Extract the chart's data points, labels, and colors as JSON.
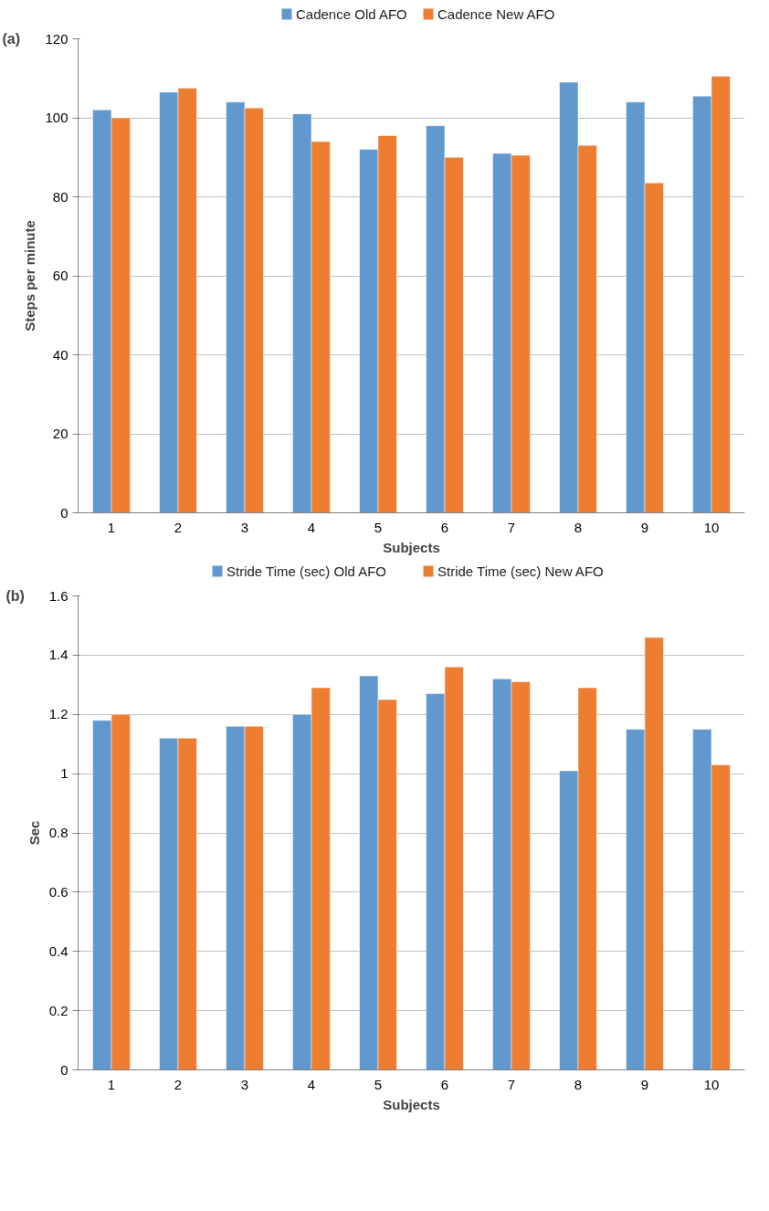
{
  "chart_data": [
    {
      "type": "bar",
      "annotations": [
        "(a)"
      ],
      "xlabel": "Subjects",
      "ylabel": "Steps per minute",
      "categories": [
        "1",
        "2",
        "3",
        "4",
        "5",
        "6",
        "7",
        "8",
        "9",
        "10"
      ],
      "ylim": [
        0,
        120
      ],
      "yticks": [
        0,
        20,
        40,
        60,
        80,
        100,
        120
      ],
      "grid": "y",
      "legend": "top",
      "series": [
        {
          "name": "Cadence Old AFO",
          "color": "#6199cf",
          "values": [
            102,
            106.5,
            104,
            101,
            92,
            98,
            91,
            109,
            104,
            105.5
          ]
        },
        {
          "name": "Cadence New AFO",
          "color": "#ed7d31",
          "values": [
            100,
            107.5,
            102.5,
            94,
            95.5,
            90,
            90.5,
            93,
            83.5,
            110.5
          ]
        }
      ]
    },
    {
      "type": "bar",
      "annotations": [
        "(b)"
      ],
      "xlabel": "Subjects",
      "ylabel": "Sec",
      "categories": [
        "1",
        "2",
        "3",
        "4",
        "5",
        "6",
        "7",
        "8",
        "9",
        "10"
      ],
      "ylim": [
        0,
        1.6
      ],
      "yticks": [
        0,
        0.2,
        0.4,
        0.6,
        0.8,
        1,
        1.2,
        1.4,
        1.6
      ],
      "grid": "y",
      "legend": "top",
      "series": [
        {
          "name": "Stride Time (sec) Old AFO",
          "color": "#6199cf",
          "values": [
            1.18,
            1.12,
            1.16,
            1.2,
            1.33,
            1.27,
            1.32,
            1.01,
            1.15,
            1.15
          ]
        },
        {
          "name": "Stride Time (sec) New AFO",
          "color": "#ed7d31",
          "values": [
            1.2,
            1.12,
            1.16,
            1.29,
            1.25,
            1.36,
            1.31,
            1.29,
            1.46,
            1.03
          ]
        }
      ]
    }
  ]
}
